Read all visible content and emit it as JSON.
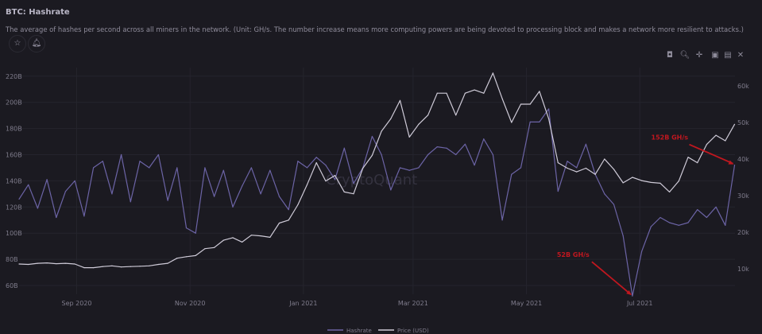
{
  "header": {
    "title": "BTC: Hashrate",
    "description": "The average of hashes per second across all miners in the network. (Unit: GH/s. The number increase means more computing powers are being devoted to processing block and makes a network more resilient to attacks.)",
    "favorite_icon": "star-icon",
    "alert_icon": "bell-icon"
  },
  "toolbar": [
    "camera-icon",
    "zoom-icon",
    "pan-icon",
    "autoscale-icon",
    "reset-axes-icon",
    "close-icon"
  ],
  "watermark": "CryptoQuant",
  "chart_data": {
    "type": "line",
    "title": "",
    "xlim": [
      "2020-08-01",
      "2021-08-21"
    ],
    "x_ticks": [
      "Sep 2020",
      "Nov 2020",
      "Jan 2021",
      "Mar 2021",
      "May 2021",
      "Jul 2021"
    ],
    "y_left": {
      "ticks": [
        "60B",
        "80B",
        "100B",
        "120B",
        "140B",
        "160B",
        "180B",
        "200B",
        "220B"
      ],
      "range": [
        55,
        225
      ],
      "unit": "B GH/s"
    },
    "y_right": {
      "ticks": [
        "10k",
        "20k",
        "30k",
        "40k",
        "50k",
        "60k"
      ],
      "range": [
        5,
        66
      ],
      "unit": "k USD"
    },
    "grid": true,
    "legend_position": "bottom",
    "x": [
      "2020-08-01",
      "2020-08-06",
      "2020-08-11",
      "2020-08-16",
      "2020-08-21",
      "2020-08-26",
      "2020-08-31",
      "2020-09-05",
      "2020-09-10",
      "2020-09-15",
      "2020-09-20",
      "2020-09-25",
      "2020-09-30",
      "2020-10-05",
      "2020-10-10",
      "2020-10-15",
      "2020-10-20",
      "2020-10-25",
      "2020-10-30",
      "2020-11-04",
      "2020-11-09",
      "2020-11-14",
      "2020-11-19",
      "2020-11-24",
      "2020-11-29",
      "2020-12-04",
      "2020-12-09",
      "2020-12-14",
      "2020-12-19",
      "2020-12-24",
      "2020-12-29",
      "2021-01-03",
      "2021-01-08",
      "2021-01-13",
      "2021-01-18",
      "2021-01-23",
      "2021-01-28",
      "2021-02-02",
      "2021-02-07",
      "2021-02-12",
      "2021-02-17",
      "2021-02-22",
      "2021-02-27",
      "2021-03-04",
      "2021-03-09",
      "2021-03-14",
      "2021-03-19",
      "2021-03-24",
      "2021-03-29",
      "2021-04-03",
      "2021-04-08",
      "2021-04-13",
      "2021-04-18",
      "2021-04-23",
      "2021-04-28",
      "2021-05-03",
      "2021-05-08",
      "2021-05-13",
      "2021-05-18",
      "2021-05-23",
      "2021-05-28",
      "2021-06-02",
      "2021-06-07",
      "2021-06-12",
      "2021-06-17",
      "2021-06-22",
      "2021-06-27",
      "2021-07-02",
      "2021-07-07",
      "2021-07-12",
      "2021-07-17",
      "2021-07-22",
      "2021-07-27",
      "2021-08-01",
      "2021-08-06",
      "2021-08-11",
      "2021-08-16",
      "2021-08-21"
    ],
    "series": [
      {
        "name": "Hashrate",
        "axis": "left",
        "color": "#6c64a6",
        "values": [
          126,
          137,
          119,
          141,
          112,
          132,
          140,
          113,
          150,
          155,
          130,
          160,
          124,
          155,
          150,
          160,
          125,
          150,
          104,
          100,
          150,
          128,
          148,
          120,
          136,
          150,
          130,
          148,
          128,
          118,
          155,
          150,
          158,
          152,
          141,
          165,
          138,
          150,
          174,
          160,
          133,
          150,
          148,
          150,
          160,
          166,
          165,
          160,
          168,
          152,
          172,
          160,
          110,
          145,
          150,
          185,
          185,
          195,
          132,
          155,
          150,
          168,
          145,
          130,
          122,
          98,
          52,
          86,
          105,
          112,
          108,
          106,
          108,
          118,
          112,
          120,
          106,
          152
        ]
      },
      {
        "name": "Price (USD)",
        "axis": "right",
        "color": "#cfcbd8",
        "values": [
          11.3,
          11.2,
          11.5,
          11.6,
          11.4,
          11.5,
          11.3,
          10.3,
          10.3,
          10.6,
          10.8,
          10.5,
          10.6,
          10.7,
          10.8,
          11.2,
          11.5,
          12.9,
          13.3,
          13.6,
          15.5,
          15.8,
          17.8,
          18.5,
          17.3,
          19.2,
          19.0,
          18.6,
          22.5,
          23.3,
          27.5,
          33,
          39,
          34,
          35.5,
          31,
          30.5,
          37.5,
          41,
          47.6,
          51,
          56,
          46,
          49.5,
          52,
          58,
          58,
          52,
          58,
          58.9,
          58,
          63.5,
          56.5,
          50,
          55,
          55,
          58.5,
          51,
          39,
          37.5,
          36.5,
          37.5,
          35.8,
          40,
          37.2,
          33.5,
          35,
          34.1,
          33.6,
          33.4,
          31,
          34,
          40.5,
          39,
          44,
          46.5,
          45,
          49.5
        ]
      }
    ],
    "annotations": [
      {
        "text": "152B GH/s",
        "x": "2021-08-21",
        "y": 152,
        "color": "#c0171f"
      },
      {
        "text": "52B GH/s",
        "x": "2021-06-27",
        "y": 52,
        "color": "#c0171f"
      }
    ]
  }
}
